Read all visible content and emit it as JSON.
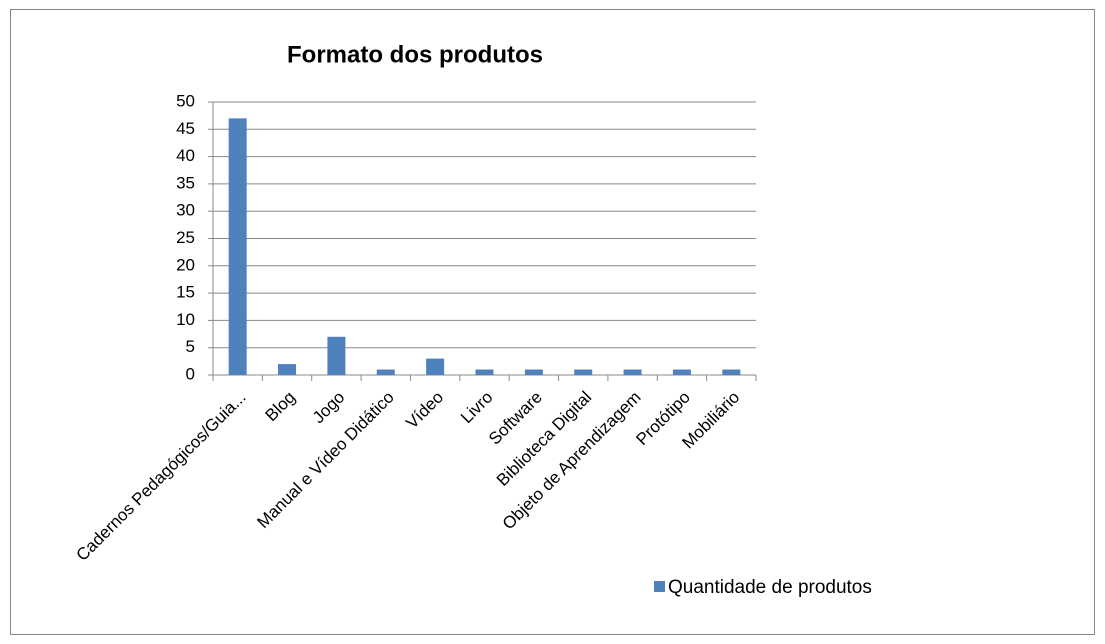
{
  "chart_data": {
    "type": "bar",
    "title": "Formato dos produtos",
    "categories": [
      "Cadernos Pedagógicos/Guia...",
      "Blog",
      "Jogo",
      "Manual e Vídeo Didático",
      "Vídeo",
      "Livro",
      "Software",
      "Biblioteca Digital",
      "Objeto de Aprendizagem",
      "Protótipo",
      "Mobiliário"
    ],
    "series": [
      {
        "name": "Quantidade de produtos",
        "color": "#4f81bd",
        "values": [
          47,
          2,
          7,
          1,
          3,
          1,
          1,
          1,
          1,
          1,
          1
        ]
      }
    ],
    "ylim": [
      0,
      50
    ],
    "yticks": [
      0,
      5,
      10,
      15,
      20,
      25,
      30,
      35,
      40,
      45,
      50
    ],
    "grid": true,
    "legend": "bottom-right"
  }
}
